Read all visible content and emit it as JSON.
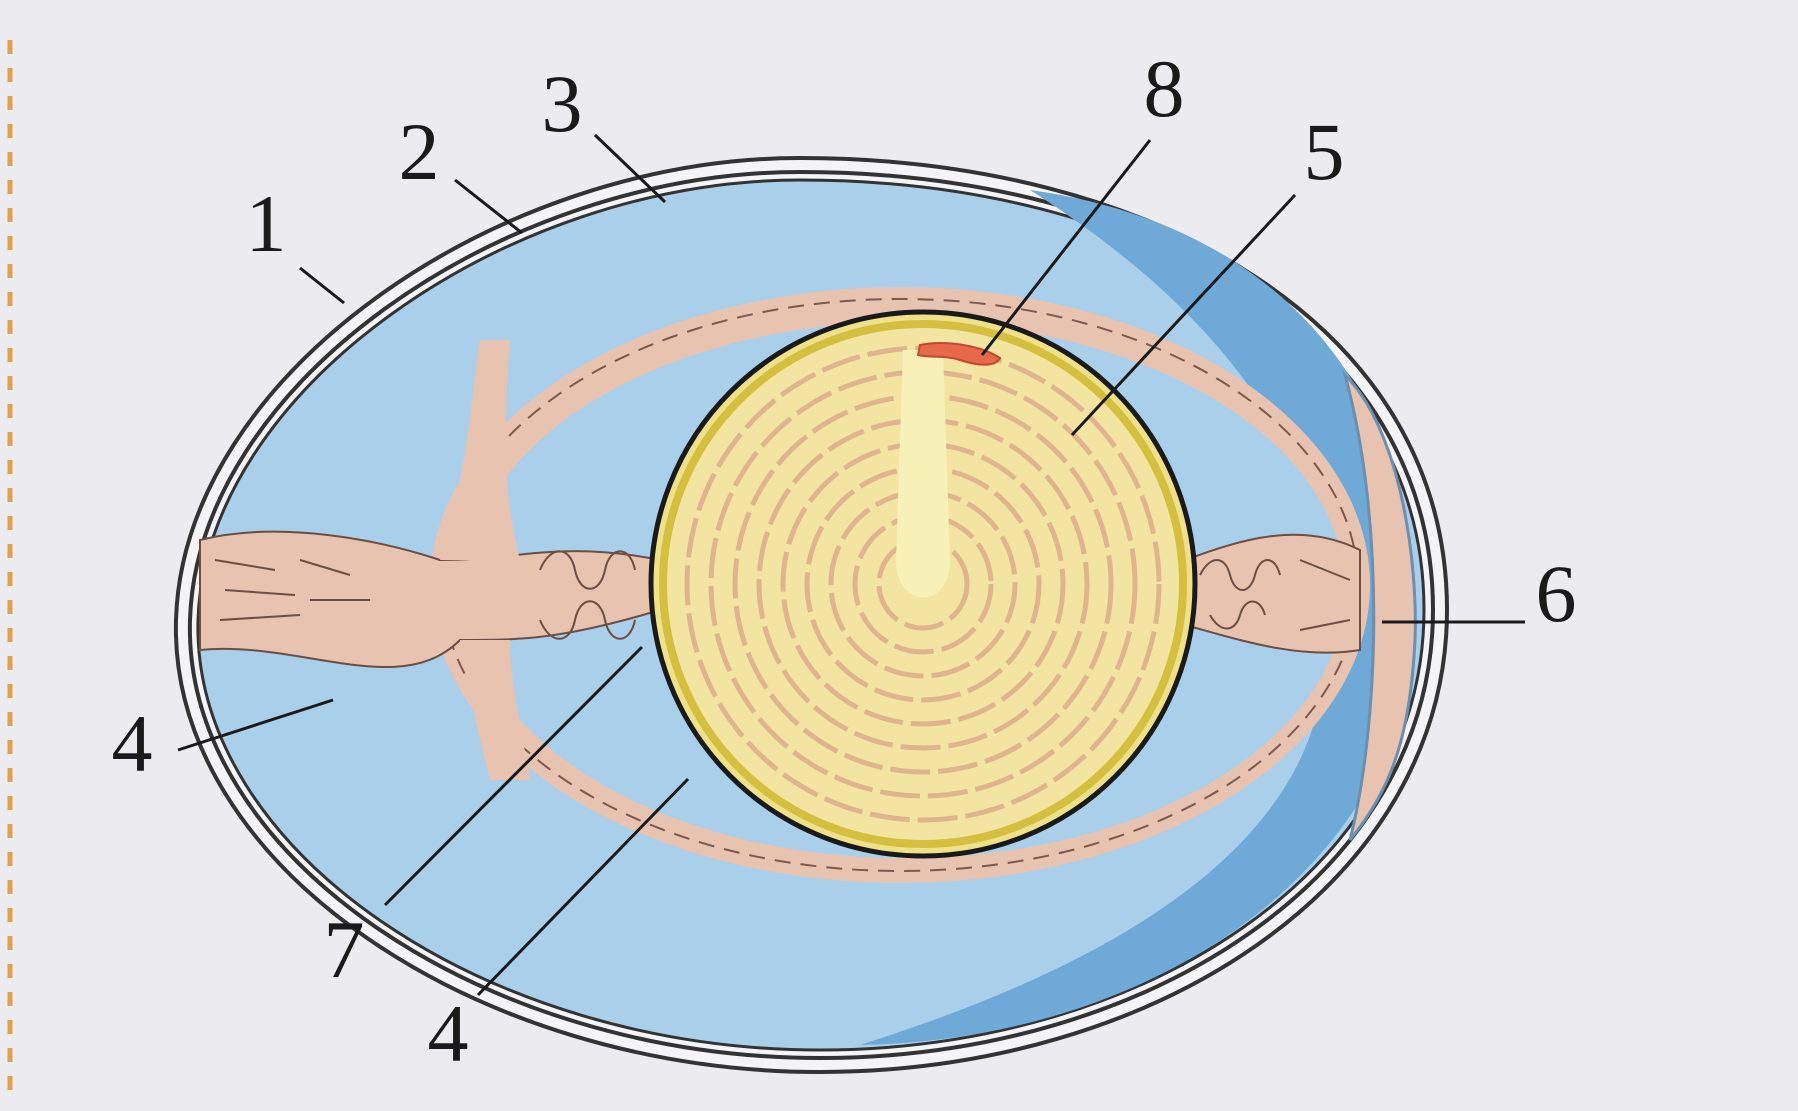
{
  "labels": [
    "1",
    "2",
    "3",
    "8",
    "5",
    "6",
    "4",
    "7",
    "4"
  ]
}
